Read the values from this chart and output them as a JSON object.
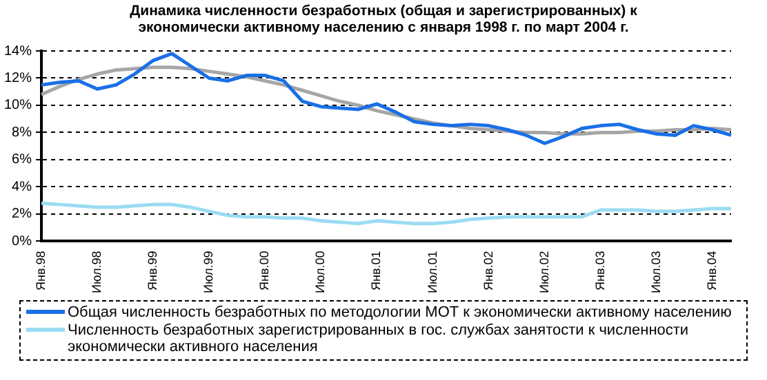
{
  "chart_data": {
    "type": "line",
    "title": "Динамика численности безработных (общая и зарегистрированных) к экономически активному населению с января 1998 г. по март 2004 г.",
    "categories": [
      "Янв.98",
      null,
      null,
      "Июл.98",
      null,
      null,
      "Янв.99",
      null,
      null,
      "Июл.99",
      null,
      null,
      "Янв.00",
      null,
      null,
      "Июл.00",
      null,
      null,
      "Янв.01",
      null,
      null,
      "Июл.01",
      null,
      null,
      "Янв.02",
      null,
      null,
      "Июл.02",
      null,
      null,
      "Янв.03",
      null,
      null,
      "Июл.03",
      null,
      null,
      "Янв.04",
      null
    ],
    "series": [
      {
        "name": "Общая численность безработных по методологии МОТ к экономически активному населению",
        "color": "#1a6fe6",
        "values": [
          11.5,
          11.7,
          11.8,
          11.2,
          11.5,
          12.3,
          13.3,
          13.8,
          12.9,
          12.0,
          11.8,
          12.2,
          12.2,
          11.8,
          10.3,
          9.9,
          9.8,
          9.7,
          10.1,
          9.5,
          8.8,
          8.6,
          8.5,
          8.6,
          8.5,
          8.2,
          7.8,
          7.2,
          7.7,
          8.3,
          8.5,
          8.6,
          8.2,
          7.9,
          7.8,
          8.5,
          8.2,
          7.8
        ]
      },
      {
        "name": "Численность безработных зарегистрированных в гос. службах занятости к численности экономически активного населения",
        "color": "#9adcf2",
        "values": [
          2.8,
          2.7,
          2.6,
          2.5,
          2.5,
          2.6,
          2.7,
          2.7,
          2.5,
          2.2,
          1.9,
          1.8,
          1.8,
          1.7,
          1.7,
          1.5,
          1.4,
          1.3,
          1.5,
          1.4,
          1.3,
          1.3,
          1.4,
          1.6,
          1.7,
          1.8,
          1.8,
          1.8,
          1.8,
          1.8,
          2.3,
          2.3,
          2.3,
          2.2,
          2.2,
          2.3,
          2.4,
          2.4
        ]
      },
      {
        "color": "#a6a6a6",
        "values": [
          10.8,
          11.4,
          11.9,
          12.3,
          12.6,
          12.7,
          12.8,
          12.8,
          12.7,
          12.5,
          12.3,
          12.1,
          11.8,
          11.5,
          11.1,
          10.7,
          10.3,
          10.0,
          9.6,
          9.3,
          9.0,
          8.7,
          8.5,
          8.3,
          8.2,
          8.1,
          8.0,
          8.0,
          7.9,
          7.9,
          8.0,
          8.0,
          8.1,
          8.1,
          8.2,
          8.2,
          8.3,
          8.2
        ]
      }
    ],
    "ylim": [
      0,
      14
    ],
    "yticks": [
      {
        "value": 0,
        "label": "0%"
      },
      {
        "value": 2,
        "label": "2%"
      },
      {
        "value": 4,
        "label": "4%"
      },
      {
        "value": 6,
        "label": "6%"
      },
      {
        "value": 8,
        "label": "8%"
      },
      {
        "value": 10,
        "label": "10%"
      },
      {
        "value": 12,
        "label": "12%"
      },
      {
        "value": 14,
        "label": "14%"
      }
    ],
    "grid": "y",
    "legend": "bottom",
    "marker": "none",
    "line_style": "solid"
  }
}
